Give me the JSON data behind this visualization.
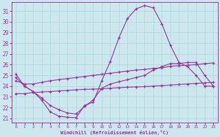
{
  "bg_color": "#cce8ee",
  "line_color": "#993399",
  "xlabel": "Windchill (Refroidissement éolien,°C)",
  "xlim_min": -0.5,
  "xlim_max": 23.5,
  "ylim_min": 20.6,
  "ylim_max": 31.8,
  "xticks": [
    0,
    1,
    2,
    3,
    4,
    5,
    6,
    7,
    8,
    9,
    10,
    11,
    12,
    13,
    14,
    15,
    16,
    17,
    18,
    19,
    20,
    21,
    22,
    23
  ],
  "yticks": [
    21,
    22,
    23,
    24,
    25,
    26,
    27,
    28,
    29,
    30,
    31
  ],
  "grid_color": "#a8d8dc",
  "font_family": "monospace",
  "curve1_x": [
    0,
    1,
    2,
    3,
    4,
    5,
    6,
    7,
    8,
    9,
    10,
    11,
    12,
    13,
    14,
    15,
    16,
    17,
    18,
    19,
    20,
    21,
    22,
    23
  ],
  "curve1_y": [
    25.1,
    24.0,
    23.5,
    22.7,
    21.6,
    21.2,
    21.1,
    21.05,
    22.2,
    22.5,
    24.5,
    26.3,
    28.5,
    30.3,
    31.2,
    31.5,
    31.3,
    29.8,
    27.8,
    26.2,
    25.8,
    25.0,
    24.0,
    24.0
  ],
  "curve2_x": [
    0,
    1,
    2,
    3,
    4,
    5,
    6,
    7,
    8,
    9,
    10,
    11,
    12,
    13,
    14,
    15,
    16,
    17,
    18,
    19,
    20,
    21,
    22,
    23
  ],
  "curve2_y": [
    24.8,
    24.0,
    23.5,
    22.9,
    22.2,
    21.8,
    21.5,
    21.4,
    22.1,
    22.7,
    23.8,
    24.2,
    24.4,
    24.6,
    24.8,
    25.0,
    25.5,
    25.8,
    26.1,
    26.1,
    26.2,
    26.2,
    25.0,
    24.0
  ],
  "curve3_x": [
    0,
    1,
    2,
    3,
    4,
    5,
    6,
    7,
    8,
    9,
    10,
    11,
    12,
    13,
    14,
    15,
    16,
    17,
    18,
    19,
    20,
    21,
    22,
    23
  ],
  "curve3_y": [
    24.5,
    24.2,
    24.2,
    24.35,
    24.5,
    24.6,
    24.7,
    24.8,
    24.9,
    25.0,
    25.1,
    25.2,
    25.3,
    25.4,
    25.5,
    25.55,
    25.65,
    25.7,
    25.85,
    25.9,
    25.95,
    26.0,
    26.1,
    26.15
  ],
  "curve4_x": [
    0,
    1,
    2,
    3,
    4,
    5,
    6,
    7,
    8,
    9,
    10,
    11,
    12,
    13,
    14,
    15,
    16,
    17,
    18,
    19,
    20,
    21,
    22,
    23
  ],
  "curve4_y": [
    23.3,
    23.3,
    23.4,
    23.45,
    23.5,
    23.55,
    23.6,
    23.65,
    23.7,
    23.72,
    23.75,
    23.8,
    23.85,
    23.9,
    23.92,
    23.95,
    24.0,
    24.05,
    24.1,
    24.15,
    24.2,
    24.25,
    24.3,
    24.35
  ]
}
